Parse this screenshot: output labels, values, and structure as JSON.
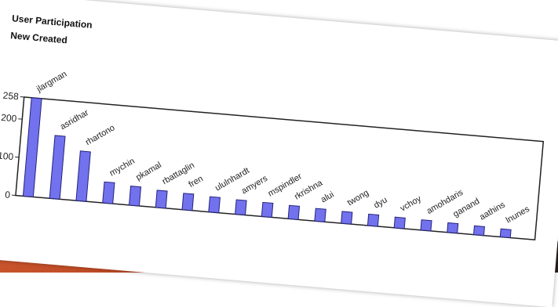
{
  "header": {
    "title": "User Participation",
    "subtitle": "New Created"
  },
  "chart_data": {
    "type": "bar",
    "title": "User Participation",
    "subtitle": "New Created",
    "xlabel": "",
    "ylabel": "",
    "ylim": [
      0,
      258
    ],
    "yticks": [
      0,
      100,
      200,
      258
    ],
    "grid": false,
    "categories": [
      "jlargman",
      "asridhar",
      "rhartono",
      "mychin",
      "pkamal",
      "rbattaglin",
      "fren",
      "ululnhardt",
      "amyers",
      "mspindler",
      "rkrishna",
      "alui",
      "twong",
      "dyu",
      "vchoy",
      "amohdaris",
      "ganand",
      "aathins",
      "lnunes"
    ],
    "values": [
      258,
      165,
      130,
      55,
      50,
      45,
      43,
      40,
      38,
      37,
      35,
      33,
      31,
      30,
      28,
      27,
      25,
      23,
      21
    ]
  },
  "colors": {
    "bar_fill": "#7272ee",
    "bar_stroke": "#24247a",
    "axis": "#222222"
  }
}
